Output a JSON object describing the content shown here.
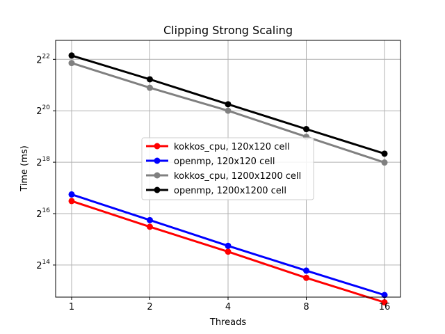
{
  "chart_data": {
    "type": "line",
    "title": "Clipping Strong Scaling",
    "xlabel": "Threads",
    "ylabel": "Time (ms)",
    "x_scale": "log2",
    "y_scale": "log2",
    "x": [
      1,
      2,
      4,
      8,
      16
    ],
    "x_tick_labels": [
      "1",
      "2",
      "4",
      "8",
      "16"
    ],
    "y_ticks": [
      {
        "base": "2",
        "exp": "14",
        "value": 16384
      },
      {
        "base": "2",
        "exp": "16",
        "value": 65536
      },
      {
        "base": "2",
        "exp": "18",
        "value": 262144
      },
      {
        "base": "2",
        "exp": "20",
        "value": 1048576
      },
      {
        "base": "2",
        "exp": "22",
        "value": 4194304
      }
    ],
    "ylim": [
      6900,
      7000000
    ],
    "grid": true,
    "legend_position": "center-right",
    "series": [
      {
        "name": "kokkos_cpu, 120x120 cell",
        "color": "#ff0000",
        "values": [
          92000,
          46000,
          23500,
          11600,
          6000
        ]
      },
      {
        "name": "openmp, 120x120 cell",
        "color": "#0000ff",
        "values": [
          110000,
          55000,
          27500,
          14100,
          7300
        ]
      },
      {
        "name": "kokkos_cpu, 1200x1200 cell",
        "color": "#808080",
        "values": [
          3800000,
          1950000,
          1050000,
          520000,
          260000
        ]
      },
      {
        "name": "openmp, 1200x1200 cell",
        "color": "#000000",
        "values": [
          4650000,
          2450000,
          1250000,
          640000,
          330000
        ]
      }
    ]
  }
}
